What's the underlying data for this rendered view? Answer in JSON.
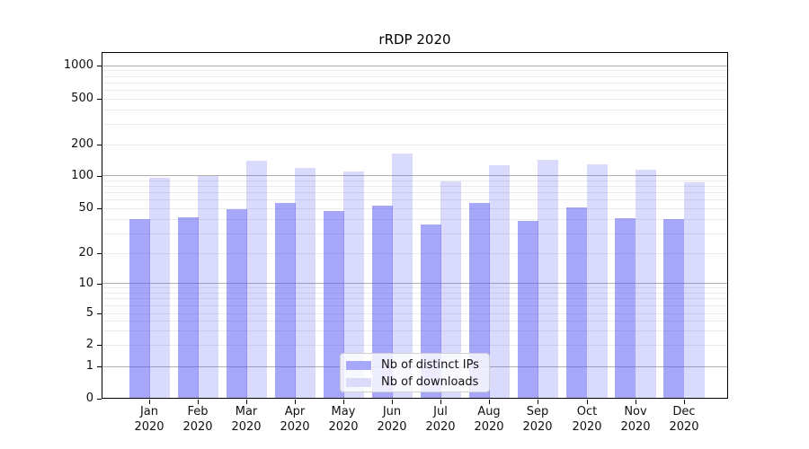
{
  "figure": {
    "title": "rRDP 2020"
  },
  "chart_data": {
    "type": "bar",
    "title": "rRDP 2020",
    "categories": [
      "Jan",
      "Feb",
      "Mar",
      "Apr",
      "May",
      "Jun",
      "Jul",
      "Aug",
      "Sep",
      "Oct",
      "Nov",
      "Dec"
    ],
    "category_year": "2020",
    "series": [
      {
        "name": "Nb of distinct IPs",
        "color": "rgba(80,80,245,0.50)",
        "solid_color": "#a8a8fa",
        "values": [
          40,
          42,
          49,
          56,
          48,
          53,
          36,
          56,
          39,
          51,
          41,
          40
        ]
      },
      {
        "name": "Nb of downloads",
        "color": "rgba(80,80,245,0.21)",
        "solid_color": "#dbdbfa",
        "values": [
          96,
          100,
          140,
          118,
          110,
          163,
          88,
          126,
          143,
          128,
          114,
          87
        ]
      }
    ],
    "y_axis": {
      "scale": "symlog",
      "ticks": [
        0,
        1,
        2,
        5,
        10,
        20,
        50,
        100,
        200,
        500,
        1000
      ],
      "minor_gridlines": [
        2,
        3,
        4,
        5,
        6,
        7,
        8,
        9,
        20,
        30,
        40,
        50,
        60,
        70,
        80,
        90,
        200,
        300,
        400,
        500,
        600,
        700,
        800,
        900
      ],
      "major_gridlines": [
        1,
        10,
        100,
        1000
      ]
    },
    "x_axis": {
      "label_line2": "2020"
    },
    "legend": {
      "position": "bottom-center",
      "entries": [
        "Nb of distinct IPs",
        "Nb of downloads"
      ]
    },
    "colors": {
      "major_grid": "#b0b0b0",
      "minor_grid": "#ebebeb",
      "spine": "#000000",
      "text": "#111111"
    },
    "grid": true
  }
}
